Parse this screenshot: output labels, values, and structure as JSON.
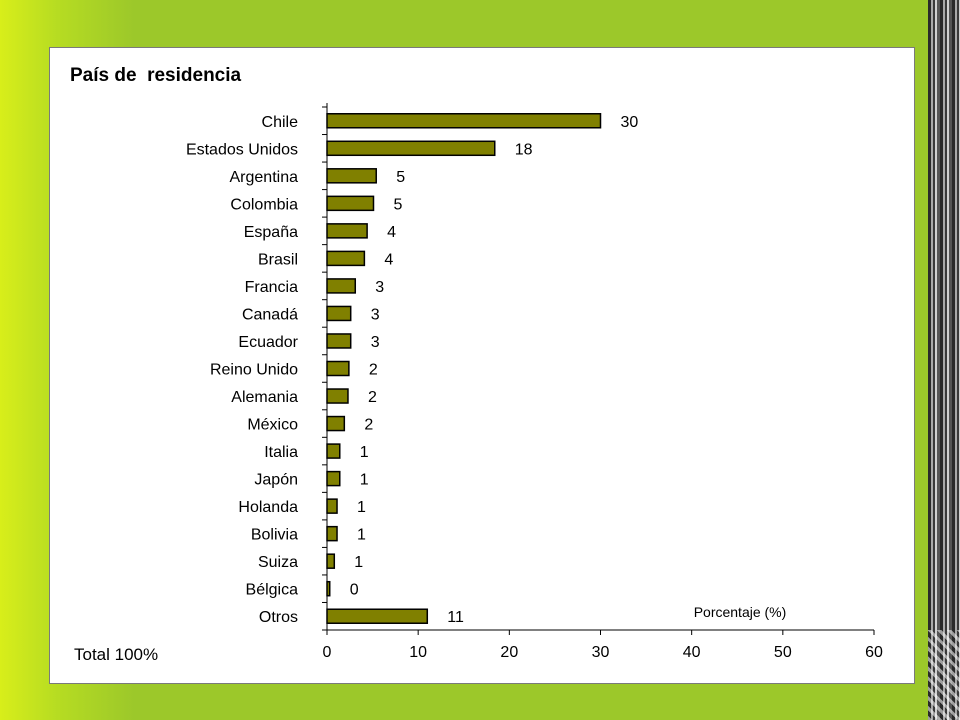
{
  "chart_data": {
    "type": "bar",
    "orientation": "horizontal",
    "title": "País de  residencia",
    "xlabel": "Porcentaje (%)",
    "ylabel": "",
    "xlim": [
      0,
      60
    ],
    "x_ticks": [
      0,
      10,
      20,
      30,
      40,
      50,
      60
    ],
    "grid": false,
    "categories": [
      "Chile",
      "Estados Unidos",
      "Argentina",
      "Colombia",
      "España",
      "Brasil",
      "Francia",
      "Canadá",
      "Ecuador",
      "Reino Unido",
      "Alemania",
      "México",
      "Italia",
      "Japón",
      "Holanda",
      "Bolivia",
      "Suiza",
      "Bélgica",
      "Otros"
    ],
    "values": [
      30,
      18.4,
      5.4,
      5.1,
      4.4,
      4.1,
      3.1,
      2.6,
      2.6,
      2.4,
      2.3,
      1.9,
      1.4,
      1.4,
      1.1,
      1.1,
      0.8,
      0.3,
      11
    ],
    "value_labels": [
      "30",
      "18",
      "5",
      "5",
      "4",
      "4",
      "3",
      "3",
      "3",
      "2",
      "2",
      "2",
      "1",
      "1",
      "1",
      "1",
      "1",
      "0",
      "11"
    ],
    "bar_color": "#808000",
    "bar_border_color": "#000000",
    "footnote": "Total 100%"
  }
}
